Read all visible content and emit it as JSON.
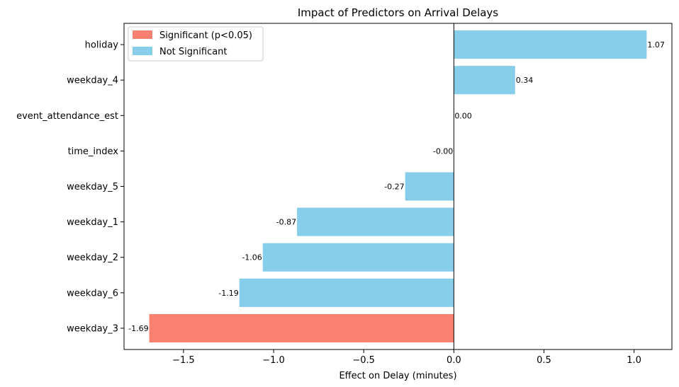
{
  "chart_data": {
    "type": "bar",
    "orientation": "horizontal",
    "title": "Impact of Predictors on Arrival Delays",
    "xlabel": "Effect on Delay (minutes)",
    "ylabel": "",
    "xlim": [
      -1.83,
      1.21
    ],
    "xticks": [
      -1.5,
      -1.0,
      -0.5,
      0.0,
      0.5,
      1.0
    ],
    "xtick_labels": [
      "−1.5",
      "−1.0",
      "−0.5",
      "0.0",
      "0.5",
      "1.0"
    ],
    "categories": [
      "holiday",
      "weekday_4",
      "event_attendance_est",
      "time_index",
      "weekday_5",
      "weekday_1",
      "weekday_2",
      "weekday_6",
      "weekday_3"
    ],
    "values": [
      1.07,
      0.34,
      0.0,
      -0.0,
      -0.27,
      -0.87,
      -1.06,
      -1.19,
      -1.69
    ],
    "value_labels": [
      "1.07",
      "0.34",
      "0.00",
      "-0.00",
      "-0.27",
      "-0.87",
      "-1.06",
      "-1.19",
      "-1.69"
    ],
    "significant": [
      false,
      false,
      false,
      false,
      false,
      false,
      false,
      false,
      true
    ],
    "legend": {
      "placement": "top-left",
      "entries": [
        {
          "label": "Significant (p<0.05)",
          "color": "#fa8072"
        },
        {
          "label": "Not Significant",
          "color": "#87ceeb"
        }
      ]
    },
    "colors": {
      "significant": "#fa8072",
      "not_significant": "#87ceeb",
      "zero_line": "#000000"
    },
    "grid": false
  }
}
